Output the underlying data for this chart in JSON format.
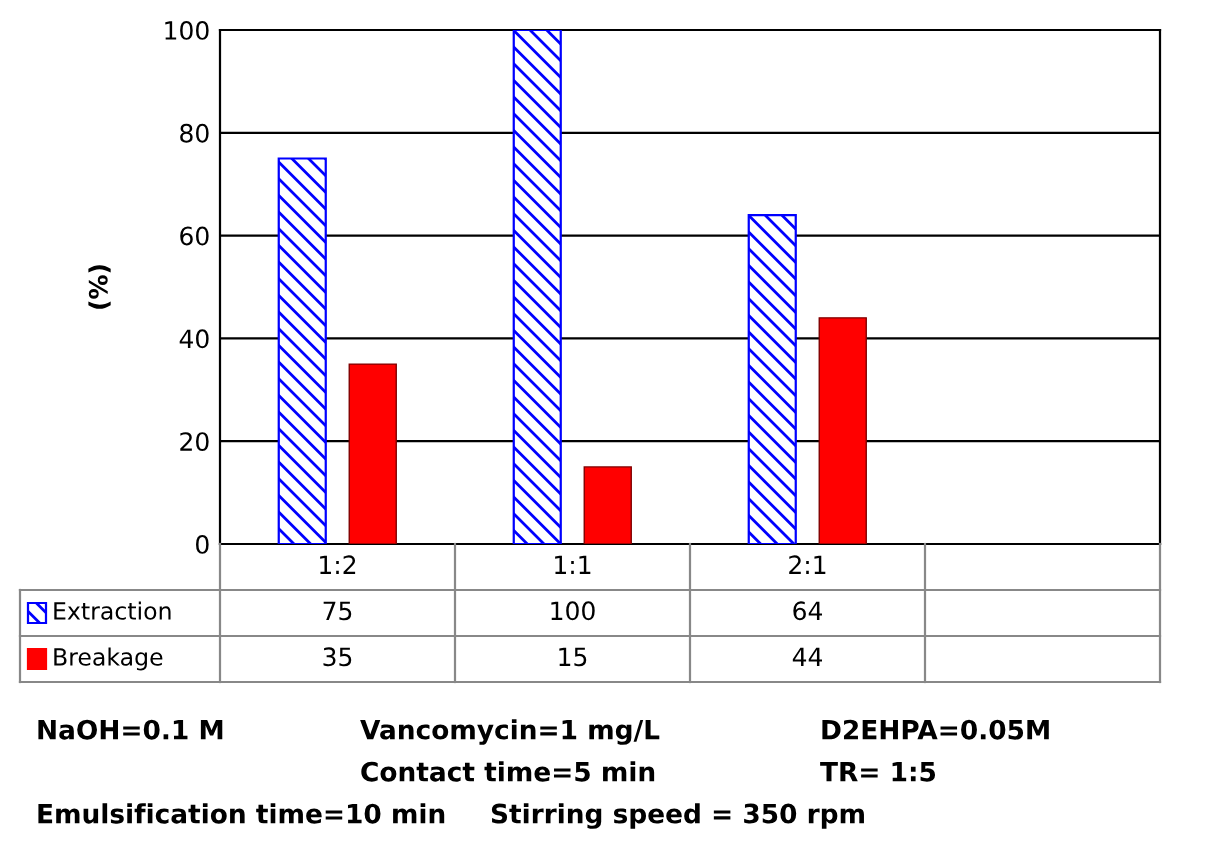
{
  "chart_data": {
    "type": "bar",
    "ylabel": "(%)",
    "categories": [
      "1:2",
      "1:1",
      "2:1",
      null
    ],
    "series": [
      {
        "name": "Extraction",
        "color": "#0000ff",
        "values": [
          75,
          100,
          64,
          null
        ]
      },
      {
        "name": "Breakage",
        "color": "#ff0000",
        "values": [
          35,
          15,
          44,
          null
        ]
      }
    ],
    "legend": "bottom",
    "ylim": [
      0,
      100
    ],
    "yticks": [
      0,
      20,
      40,
      60,
      80,
      100
    ],
    "grid": "y",
    "data_labels": true,
    "annotations": [
      "NaOH=0.1 M",
      "Vancomycin=1 mg/L",
      "D2EHPA=0.05M",
      "Contact time=5 min",
      "TR= 1:5",
      "Emulsification time=10 min",
      "Stirring speed = 350 rpm"
    ]
  }
}
